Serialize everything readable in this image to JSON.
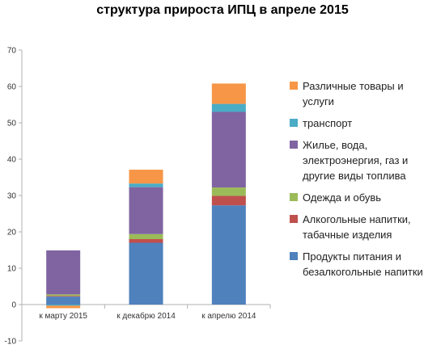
{
  "chart_data": {
    "type": "bar",
    "stacked": true,
    "title": "структура прироста ИПЦ в апреле 2015",
    "xlabel": "",
    "ylabel": "",
    "ylim": [
      -10,
      70
    ],
    "yticks": [
      -10,
      0,
      10,
      20,
      30,
      40,
      50,
      60,
      70
    ],
    "grid": false,
    "legend_position": "right",
    "categories": [
      "к марту 2015",
      "к декабрю 2014",
      "к апрелю 2014"
    ],
    "series": [
      {
        "name": "Продукты питания и безалкогольные напитки",
        "color": "#4f81bd",
        "values": [
          2.2,
          17.0,
          27.3
        ]
      },
      {
        "name": "Алкогольные напитки, табачные изделия",
        "color": "#c0504d",
        "values": [
          0.2,
          1.0,
          2.6
        ]
      },
      {
        "name": "Одежда и обувь",
        "color": "#9bbb59",
        "values": [
          0.4,
          1.4,
          2.3
        ]
      },
      {
        "name": "Жилье, вода, электроэнергия, газ и другие виды топлива",
        "color": "#8064a2",
        "values": [
          12.1,
          12.9,
          20.8
        ]
      },
      {
        "name": "транспорт",
        "color": "#4bacc6",
        "values": [
          -0.3,
          1.0,
          2.2
        ]
      },
      {
        "name": "Различные товары и услуги",
        "color": "#f79646",
        "values": [
          -0.7,
          3.8,
          5.6
        ]
      }
    ]
  },
  "legend": [
    {
      "label_lines": [
        "Различные товары и",
        "услуги"
      ],
      "color": "#f79646"
    },
    {
      "label_lines": [
        "транспорт"
      ],
      "color": "#4bacc6"
    },
    {
      "label_lines": [
        "Жилье, вода,",
        "электроэнергия, газ и",
        "другие виды топлива"
      ],
      "color": "#8064a2"
    },
    {
      "label_lines": [
        "Одежда и обувь"
      ],
      "color": "#9bbb59"
    },
    {
      "label_lines": [
        "Алкогольные напитки,",
        "табачные изделия"
      ],
      "color": "#c0504d"
    },
    {
      "label_lines": [
        "Продукты питания и",
        "безалкогольные напитки"
      ],
      "color": "#4f81bd"
    }
  ]
}
